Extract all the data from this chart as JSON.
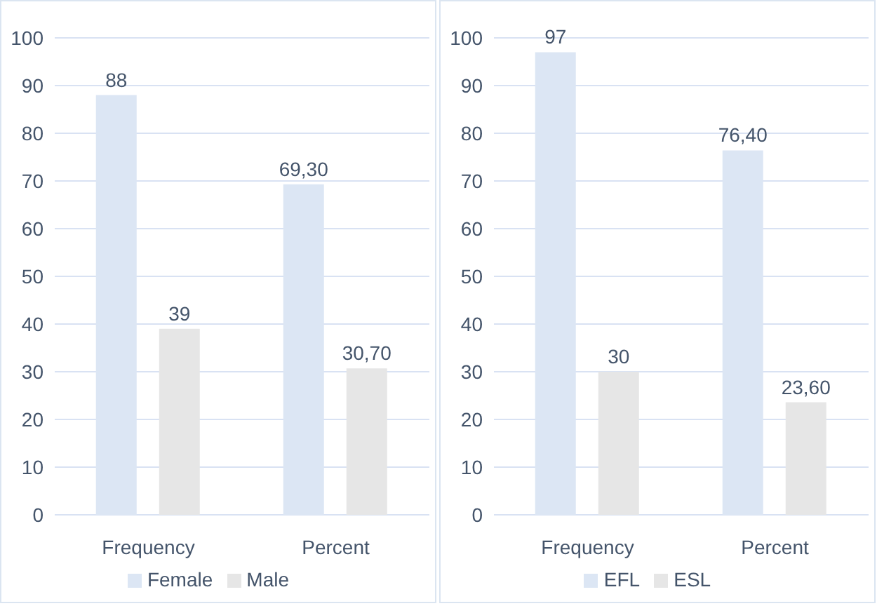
{
  "chart_data": [
    {
      "type": "bar",
      "categories": [
        "Frequency",
        "Percent"
      ],
      "series": [
        {
          "name": "Female",
          "color": "#dce6f4",
          "values": [
            88,
            69.3
          ],
          "value_labels": [
            "88",
            "69,30"
          ]
        },
        {
          "name": "Male",
          "color": "#e6e6e6",
          "values": [
            39,
            30.7
          ],
          "value_labels": [
            "39",
            "30,70"
          ]
        }
      ],
      "ylim": [
        0,
        100
      ],
      "yticks": [
        0,
        10,
        20,
        30,
        40,
        50,
        60,
        70,
        80,
        90,
        100
      ],
      "grid": "y",
      "legend": "bottom"
    },
    {
      "type": "bar",
      "categories": [
        "Frequency",
        "Percent"
      ],
      "series": [
        {
          "name": "EFL",
          "color": "#dce6f4",
          "values": [
            97,
            76.4
          ],
          "value_labels": [
            "97",
            "76,40"
          ]
        },
        {
          "name": "ESL",
          "color": "#e6e6e6",
          "values": [
            30,
            23.6
          ],
          "value_labels": [
            "30",
            "23,60"
          ]
        }
      ],
      "ylim": [
        0,
        100
      ],
      "yticks": [
        0,
        10,
        20,
        30,
        40,
        50,
        60,
        70,
        80,
        90,
        100
      ],
      "grid": "y",
      "legend": "bottom"
    }
  ]
}
